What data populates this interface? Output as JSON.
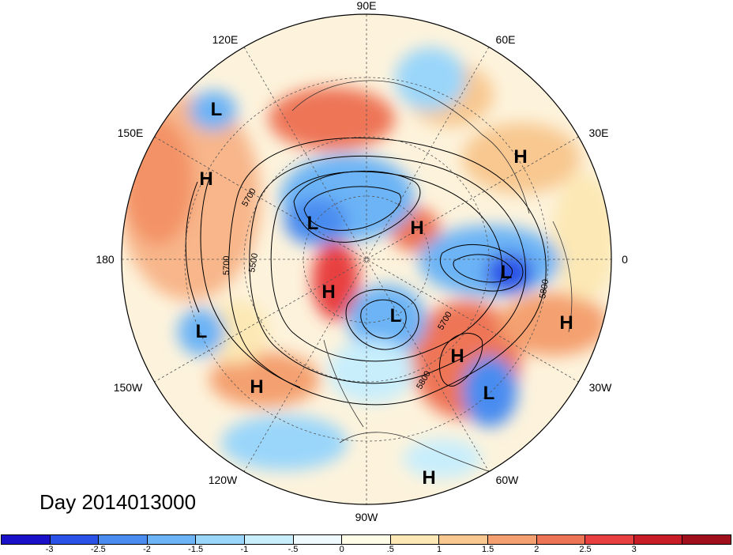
{
  "map": {
    "degree_labels": {
      "top": "90E",
      "upper_left": "120E",
      "upper_right": "60E",
      "left_upper": "150E",
      "right_upper": "30E",
      "left": "180",
      "right": "0",
      "left_lower": "150W",
      "right_lower": "30W",
      "lower_left": "120W",
      "lower_right": "60W",
      "bottom": "90W"
    },
    "pressure_centers": [
      {
        "name": "L-120E",
        "text": "L"
      },
      {
        "name": "H-150E",
        "text": "H"
      },
      {
        "name": "L-siberia",
        "text": "L"
      },
      {
        "name": "H-kara",
        "text": "H"
      },
      {
        "name": "H-30E",
        "text": "H"
      },
      {
        "name": "L-europe",
        "text": "L"
      },
      {
        "name": "H-alaska",
        "text": "H"
      },
      {
        "name": "L-hudson",
        "text": "L"
      },
      {
        "name": "L-pacific",
        "text": "L"
      },
      {
        "name": "H-pacific",
        "text": "H"
      },
      {
        "name": "H-atlantic",
        "text": "H"
      },
      {
        "name": "H-30W",
        "text": "H"
      },
      {
        "name": "L-atlantic",
        "text": "L"
      },
      {
        "name": "H-caribbean",
        "text": "H"
      }
    ],
    "contour_labels": [
      "5700",
      "5500",
      "5700",
      "5800",
      "5700",
      "5800"
    ]
  },
  "title": "Day 2014013000",
  "colorbar": {
    "colors": [
      "#1a10c8",
      "#2a52e6",
      "#4a8cf0",
      "#6cb4f6",
      "#9ad6fa",
      "#c8eefc",
      "#eefafe",
      "#fefce6",
      "#fce8b4",
      "#f8c890",
      "#f4a070",
      "#ee7456",
      "#e84040",
      "#c81c26",
      "#a0101c"
    ],
    "tick_labels": [
      "-3",
      "-2.5",
      "-2",
      "-1.5",
      "-1",
      "-.5",
      "0",
      ".5",
      "1",
      "1.5",
      "2",
      "2.5",
      "3"
    ]
  }
}
